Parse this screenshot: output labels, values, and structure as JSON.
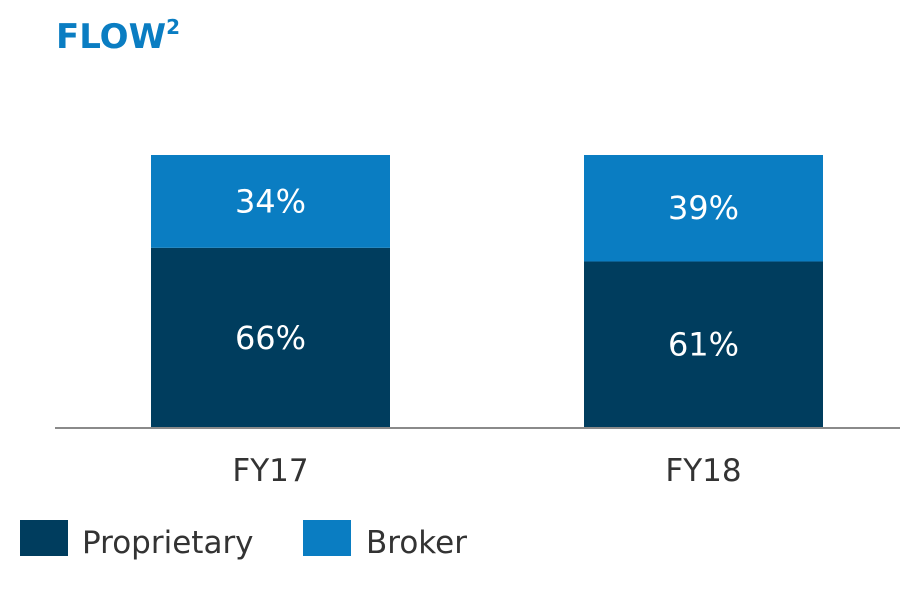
{
  "chart_data": {
    "type": "bar",
    "stacked": true,
    "title": "FLOW",
    "title_superscript": "2",
    "categories": [
      "FY17",
      "FY18"
    ],
    "series": [
      {
        "name": "Proprietary",
        "values": [
          66,
          61
        ],
        "labels": [
          "66%",
          "61%"
        ],
        "color": "#003d5e"
      },
      {
        "name": "Broker",
        "values": [
          34,
          39
        ],
        "labels": [
          "34%",
          "39%"
        ],
        "color": "#0a7dc2"
      }
    ],
    "ylim": [
      0,
      100
    ],
    "grid": false,
    "legend_position": "bottom-left"
  },
  "colors": {
    "title": "#0a7dc2",
    "axis": "#8a8a8a",
    "label_text": "#ffffff",
    "tick_text": "#333333"
  }
}
